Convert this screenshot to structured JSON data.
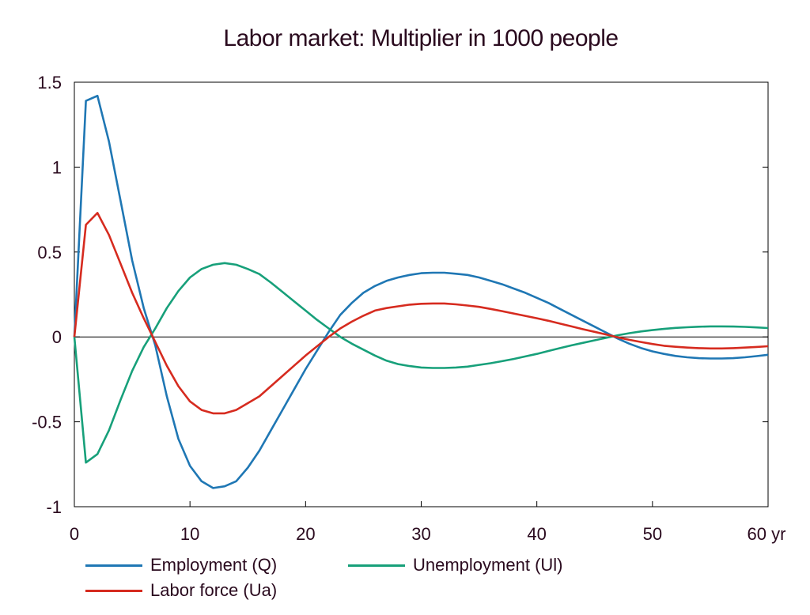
{
  "chart_data": {
    "type": "line",
    "title": "Labor market: Multiplier in 1000 people",
    "xlabel": "",
    "ylabel": "",
    "xlim": [
      0,
      60
    ],
    "ylim": [
      -1,
      1.5
    ],
    "x_ticks": [
      0,
      10,
      20,
      30,
      40,
      50,
      60
    ],
    "x_tick_labels": [
      "0",
      "10",
      "20",
      "30",
      "40",
      "50",
      "60 yr"
    ],
    "y_ticks": [
      1.5,
      1,
      0.5,
      0,
      -0.5,
      -1
    ],
    "y_tick_labels": [
      "1.5",
      "1",
      "0.5",
      "0",
      "-0.5",
      "-1"
    ],
    "grid": false,
    "legend_position": "bottom",
    "x": [
      0,
      1,
      2,
      3,
      4,
      5,
      6,
      7,
      8,
      9,
      10,
      11,
      12,
      13,
      14,
      15,
      16,
      17,
      18,
      19,
      20,
      21,
      22,
      23,
      24,
      25,
      26,
      27,
      28,
      29,
      30,
      31,
      32,
      33,
      34,
      35,
      36,
      37,
      38,
      39,
      40,
      41,
      42,
      43,
      44,
      45,
      46,
      47,
      48,
      49,
      50,
      51,
      52,
      53,
      54,
      55,
      56,
      57,
      58,
      59,
      60
    ],
    "series": [
      {
        "name": "Employment (Q)",
        "color": "#1f77b4",
        "values": [
          0,
          1.39,
          1.42,
          1.15,
          0.8,
          0.45,
          0.17,
          -0.05,
          -0.35,
          -0.6,
          -0.76,
          -0.85,
          -0.89,
          -0.88,
          -0.85,
          -0.77,
          -0.67,
          -0.55,
          -0.43,
          -0.31,
          -0.19,
          -0.08,
          0.03,
          0.13,
          0.2,
          0.26,
          0.3,
          0.33,
          0.35,
          0.365,
          0.375,
          0.378,
          0.378,
          0.372,
          0.365,
          0.35,
          0.33,
          0.31,
          0.285,
          0.26,
          0.23,
          0.2,
          0.165,
          0.13,
          0.095,
          0.06,
          0.025,
          -0.01,
          -0.04,
          -0.065,
          -0.085,
          -0.1,
          -0.112,
          -0.12,
          -0.125,
          -0.127,
          -0.127,
          -0.125,
          -0.12,
          -0.113,
          -0.105
        ]
      },
      {
        "name": "Labor force (Ua)",
        "color": "#d62b1f",
        "values": [
          0,
          0.66,
          0.73,
          0.6,
          0.43,
          0.26,
          0.11,
          -0.03,
          -0.17,
          -0.29,
          -0.38,
          -0.43,
          -0.45,
          -0.45,
          -0.43,
          -0.39,
          -0.35,
          -0.29,
          -0.23,
          -0.17,
          -0.11,
          -0.055,
          0.0,
          0.05,
          0.09,
          0.125,
          0.155,
          0.17,
          0.18,
          0.19,
          0.195,
          0.197,
          0.197,
          0.192,
          0.185,
          0.177,
          0.165,
          0.152,
          0.138,
          0.124,
          0.11,
          0.095,
          0.078,
          0.062,
          0.045,
          0.03,
          0.014,
          -0.003,
          -0.017,
          -0.03,
          -0.042,
          -0.052,
          -0.058,
          -0.063,
          -0.066,
          -0.068,
          -0.068,
          -0.066,
          -0.063,
          -0.059,
          -0.055
        ]
      },
      {
        "name": "Unemployment (Ul)",
        "color": "#17a07a",
        "values": [
          0,
          -0.74,
          -0.69,
          -0.55,
          -0.37,
          -0.2,
          -0.06,
          0.05,
          0.17,
          0.27,
          0.35,
          0.4,
          0.425,
          0.435,
          0.425,
          0.4,
          0.37,
          0.32,
          0.265,
          0.21,
          0.155,
          0.1,
          0.05,
          0.0,
          -0.04,
          -0.075,
          -0.11,
          -0.14,
          -0.16,
          -0.172,
          -0.18,
          -0.183,
          -0.183,
          -0.18,
          -0.175,
          -0.165,
          -0.155,
          -0.143,
          -0.13,
          -0.115,
          -0.1,
          -0.083,
          -0.066,
          -0.05,
          -0.035,
          -0.02,
          -0.005,
          0.01,
          0.022,
          0.032,
          0.04,
          0.047,
          0.053,
          0.057,
          0.06,
          0.062,
          0.062,
          0.061,
          0.059,
          0.056,
          0.052
        ]
      }
    ]
  },
  "legend": {
    "employment": "Employment (Q)",
    "unemployment": "Unemployment (Ul)",
    "labor_force": "Labor force (Ua)"
  },
  "colors": {
    "employment": "#1f77b4",
    "labor_force": "#d62b1f",
    "unemployment": "#17a07a",
    "text": "#2a0a1e",
    "axis": "#000000"
  }
}
